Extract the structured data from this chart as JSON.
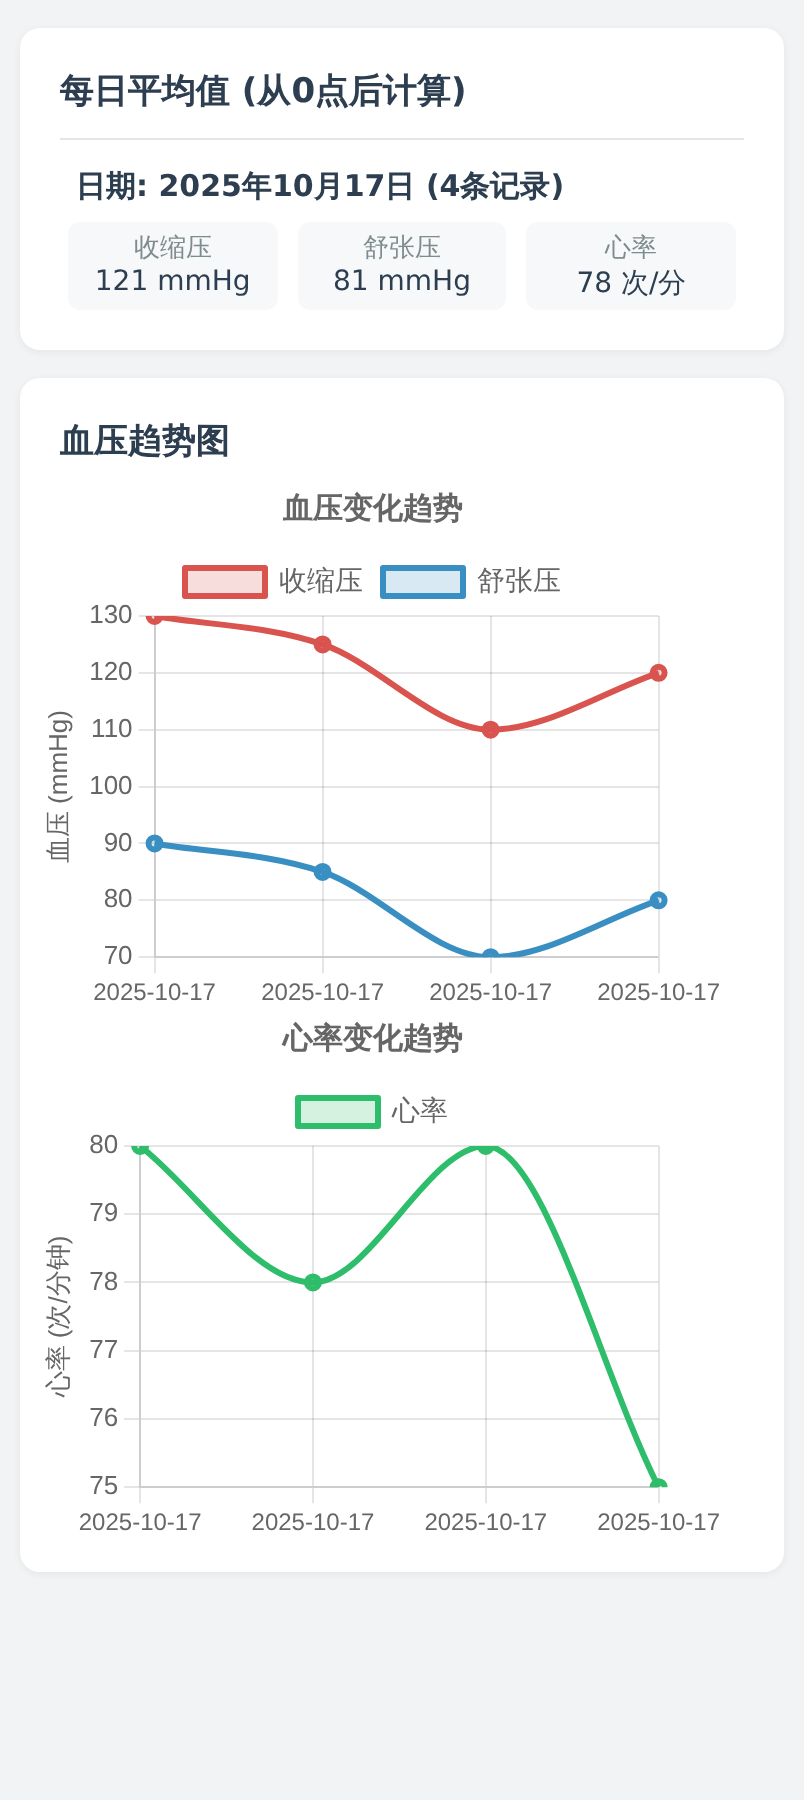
{
  "chart_data": [
    {
      "type": "other",
      "title": "每日平均值 (从0点后计算)",
      "annotations": [
        "日期: 2025年10月17日 (4条记录)",
        "收缩压",
        "121 mmHg",
        "舒张压",
        "81 mmHg",
        "心率",
        "78 次/分"
      ]
    },
    {
      "type": "other",
      "title": "血压趋势图"
    },
    {
      "type": "line",
      "title": "血压变化趋势",
      "categories": [
        "2025-10-17",
        "2025-10-17",
        "2025-10-17",
        "2025-10-17"
      ],
      "ylabel": "血压 (mmHg)",
      "ylim": [
        70,
        130
      ],
      "yticks": [
        70,
        80,
        90,
        100,
        110,
        120,
        130
      ],
      "grid": true,
      "legend": "top",
      "marker": "circle",
      "line_style": "solid",
      "series": [
        {
          "name": "收缩压",
          "color": "#d9534f",
          "values": [
            130,
            125,
            110,
            120
          ]
        },
        {
          "name": "舒张压",
          "color": "#3a8fc2",
          "values": [
            90,
            85,
            70,
            80
          ]
        }
      ]
    },
    {
      "type": "line",
      "title": "心率变化趋势",
      "categories": [
        "2025-10-17",
        "2025-10-17",
        "2025-10-17",
        "2025-10-17"
      ],
      "ylabel": "心率 (次/分钟)",
      "ylim": [
        75,
        80
      ],
      "yticks": [
        75,
        76,
        77,
        78,
        79,
        80
      ],
      "grid": true,
      "legend": "top",
      "marker": "circle",
      "line_style": "solid",
      "series": [
        {
          "name": "心率",
          "color": "#2ebd6b",
          "values": [
            80,
            78,
            80,
            75
          ]
        }
      ]
    }
  ]
}
